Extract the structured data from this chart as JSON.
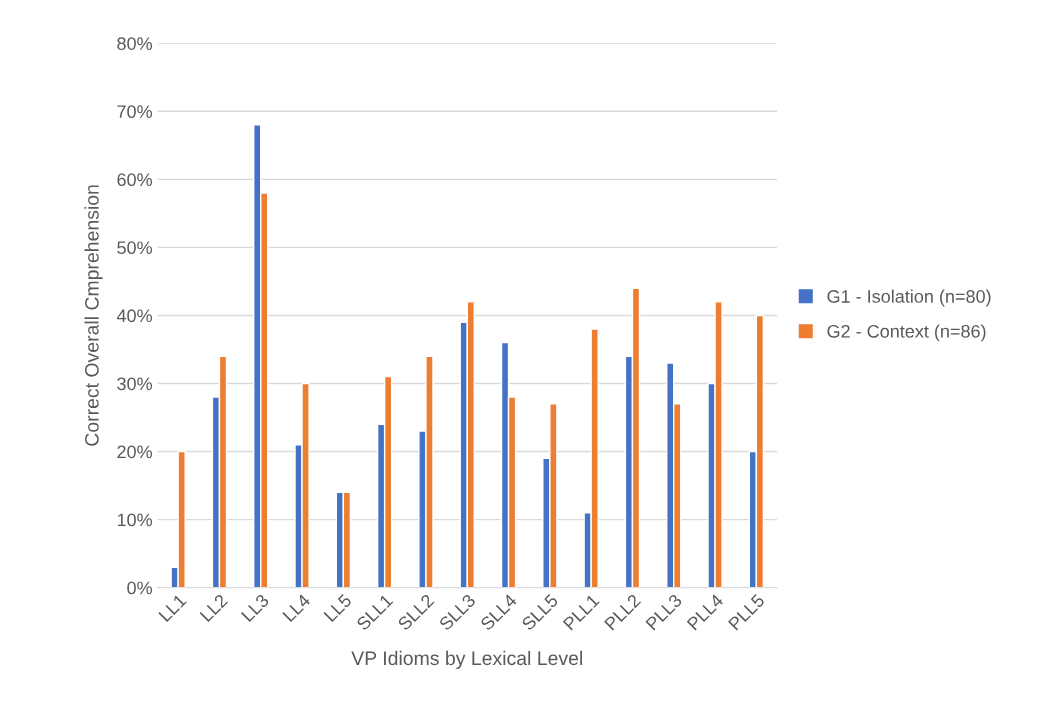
{
  "chart_data": {
    "type": "bar",
    "xlabel": "VP Idioms by Lexical Level",
    "ylabel": "Correct Overall Cmprehension",
    "categories": [
      "LL1",
      "LL2",
      "LL3",
      "LL4",
      "LL5",
      "SLL1",
      "SLL2",
      "SLL3",
      "SLL4",
      "SLL5",
      "PLL1",
      "PLL2",
      "PLL3",
      "PLL4",
      "PLL5"
    ],
    "series": [
      {
        "name": "G1 - Isolation (n=80)",
        "color": "#4472c4",
        "values": [
          3,
          28,
          68,
          21,
          14,
          24,
          23,
          39,
          36,
          19,
          11,
          34,
          33,
          30,
          20
        ]
      },
      {
        "name": "G2 - Context (n=86)",
        "color": "#ed7d31",
        "values": [
          20,
          34,
          58,
          30,
          14,
          31,
          34,
          42,
          28,
          27,
          38,
          44,
          27,
          42,
          40
        ]
      }
    ],
    "ylim": [
      0,
      80
    ],
    "yticks": [
      {
        "value": 0,
        "label": "0%"
      },
      {
        "value": 10,
        "label": "10%"
      },
      {
        "value": 20,
        "label": "20%"
      },
      {
        "value": 30,
        "label": "30%"
      },
      {
        "value": 40,
        "label": "40%"
      },
      {
        "value": 50,
        "label": "50%"
      },
      {
        "value": 60,
        "label": "60%"
      },
      {
        "value": 70,
        "label": "70%"
      },
      {
        "value": 80,
        "label": "80%"
      }
    ],
    "grid": "y",
    "legend": "right"
  }
}
